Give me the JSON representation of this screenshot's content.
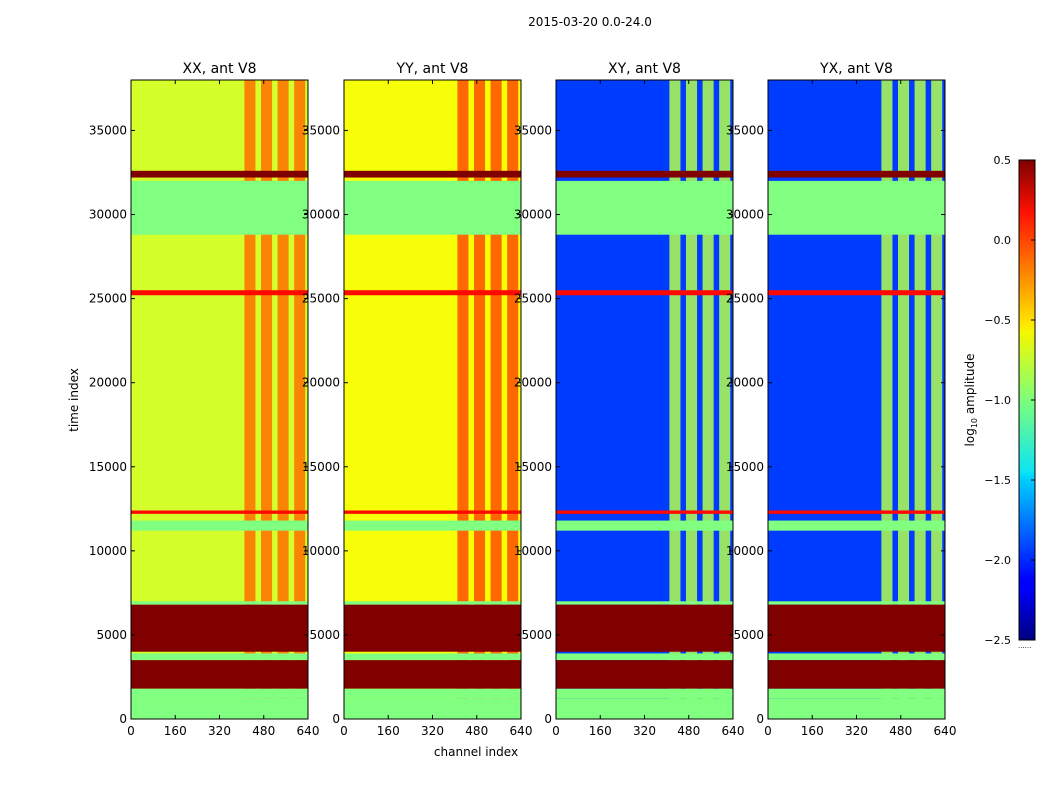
{
  "chart_data": {
    "type": "heatmap",
    "suptitle": "2015-03-20 0.0-24.0",
    "xlabel": "channel index",
    "ylabel": "time index",
    "xlim": [
      0,
      640
    ],
    "ylim": [
      0,
      38000
    ],
    "xticks": [
      "0",
      "160",
      "320",
      "480",
      "640"
    ],
    "yticks": [
      "0",
      "5000",
      "10000",
      "15000",
      "20000",
      "25000",
      "30000",
      "35000"
    ],
    "colorbar": {
      "label_prefix": "log",
      "label_sub": "10",
      "label_suffix": " amplitude",
      "range": [
        -2.5,
        0.5
      ],
      "ticks": [
        "0.5",
        "0.0",
        "−0.5",
        "−1.0",
        "−1.5",
        "−2.0",
        "−2.5"
      ],
      "footnote": "......"
    },
    "panels": [
      {
        "title": "XX, ant V8",
        "kind": "auto",
        "base_value": -0.75
      },
      {
        "title": "YY, ant V8",
        "kind": "auto",
        "base_value": -0.65
      },
      {
        "title": "XY, ant V8",
        "kind": "cross",
        "base_value": -1.95
      },
      {
        "title": "YX, ant V8",
        "kind": "cross",
        "base_value": -1.95
      }
    ],
    "bands": [
      {
        "from": 32200,
        "to": 32600,
        "value": 0.5
      },
      {
        "from": 28800,
        "to": 32000,
        "value": -1.0
      },
      {
        "from": 25200,
        "to": 25500,
        "value": 0.1
      },
      {
        "from": 12200,
        "to": 12400,
        "value": 0.1
      },
      {
        "from": 11200,
        "to": 11800,
        "value": -1.0
      },
      {
        "from": 6800,
        "to": 7000,
        "value": -1.0
      },
      {
        "from": 4000,
        "to": 6800,
        "value": 0.5
      },
      {
        "from": 3500,
        "to": 3900,
        "value": -1.0
      },
      {
        "from": 1800,
        "to": 3500,
        "value": 0.5
      },
      {
        "from": 1200,
        "to": 1800,
        "value": -1.0
      },
      {
        "from": 0,
        "to": 1200,
        "value": -1.0
      }
    ],
    "rfi_columns": [
      410,
      470,
      530,
      590
    ]
  }
}
